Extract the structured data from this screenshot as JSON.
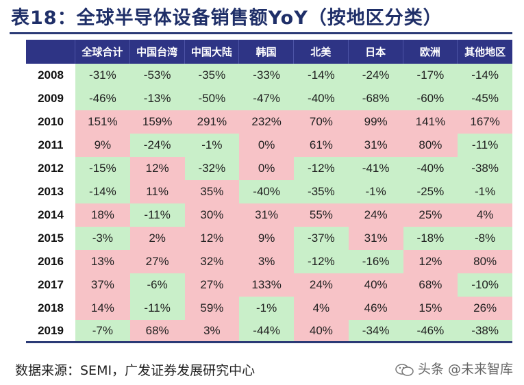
{
  "title": "表18：全球半导体设备销售额YoY（按地区分类）",
  "columns": [
    "全球合计",
    "中国台湾",
    "中国大陆",
    "韩国",
    "北美",
    "日本",
    "欧洲",
    "其他地区"
  ],
  "rows": [
    {
      "year": "2008",
      "values": [
        "-31%",
        "-53%",
        "-35%",
        "-33%",
        "-14%",
        "-24%",
        "-17%",
        "-14%"
      ]
    },
    {
      "year": "2009",
      "values": [
        "-46%",
        "-13%",
        "-50%",
        "-47%",
        "-40%",
        "-68%",
        "-60%",
        "-45%"
      ]
    },
    {
      "year": "2010",
      "values": [
        "151%",
        "159%",
        "291%",
        "232%",
        "70%",
        "99%",
        "141%",
        "167%"
      ]
    },
    {
      "year": "2011",
      "values": [
        "9%",
        "-24%",
        "-1%",
        "0%",
        "61%",
        "31%",
        "80%",
        "-11%"
      ]
    },
    {
      "year": "2012",
      "values": [
        "-15%",
        "12%",
        "-32%",
        "0%",
        "-12%",
        "-41%",
        "-40%",
        "-38%"
      ]
    },
    {
      "year": "2013",
      "values": [
        "-14%",
        "11%",
        "35%",
        "-40%",
        "-35%",
        "-1%",
        "-25%",
        "-1%"
      ]
    },
    {
      "year": "2014",
      "values": [
        "18%",
        "-11%",
        "30%",
        "31%",
        "55%",
        "24%",
        "25%",
        "4%"
      ]
    },
    {
      "year": "2015",
      "values": [
        "-3%",
        "2%",
        "12%",
        "9%",
        "-37%",
        "31%",
        "-18%",
        "-8%"
      ]
    },
    {
      "year": "2016",
      "values": [
        "13%",
        "27%",
        "32%",
        "3%",
        "-12%",
        "-16%",
        "12%",
        "80%"
      ]
    },
    {
      "year": "2017",
      "values": [
        "37%",
        "-6%",
        "27%",
        "133%",
        "24%",
        "40%",
        "68%",
        "-10%"
      ]
    },
    {
      "year": "2018",
      "values": [
        "14%",
        "-11%",
        "59%",
        "-1%",
        "4%",
        "46%",
        "15%",
        "26%"
      ]
    },
    {
      "year": "2019",
      "values": [
        "-7%",
        "68%",
        "3%",
        "-44%",
        "40%",
        "-34%",
        "-46%",
        "-38%"
      ]
    }
  ],
  "colors": {
    "header_bg": "#2e3485",
    "negative_bg": "#c9efc9",
    "positive_bg": "#f7c3c7",
    "title": "#1f2f68"
  },
  "source": "数据来源：SEMI，广发证券发展研究中心",
  "watermark": {
    "text": "头条 @未来智库",
    "icon": "wechat-style-logo-icon"
  }
}
